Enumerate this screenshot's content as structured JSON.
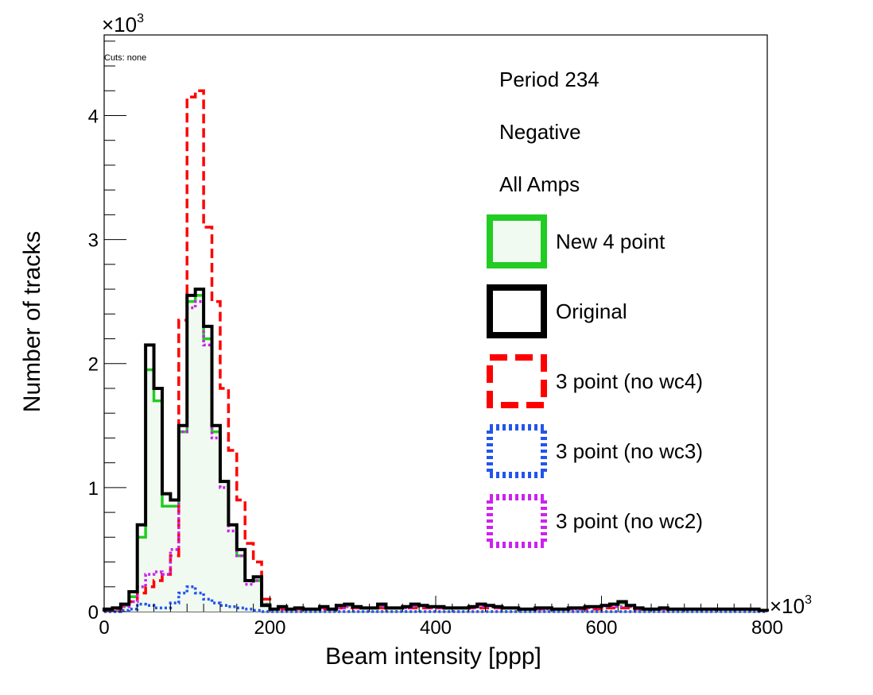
{
  "chart_data": {
    "type": "histogram-step",
    "xlabel": "Beam intensity [ppp]",
    "ylabel": "Number of tracks",
    "x_exponent_label": "×10",
    "y_exponent_label": "×10",
    "exponent": "3",
    "cuts_label": "Cuts: none",
    "info_lines": [
      "Period 234",
      "Negative",
      "All Amps"
    ],
    "xlim": [
      0,
      800
    ],
    "ylim": [
      0,
      4.65
    ],
    "x_major_ticks": [
      0,
      200,
      400,
      600,
      800
    ],
    "y_major_ticks": [
      0,
      1,
      2,
      3,
      4
    ],
    "bin_width": 10,
    "series": [
      {
        "name": "New 4 point",
        "color": "#22cc22",
        "fill": "#f0faf0",
        "style": "solid",
        "values": [
          0.02,
          0.03,
          0.05,
          0.12,
          0.6,
          1.95,
          1.7,
          0.85,
          0.85,
          1.45,
          2.5,
          2.55,
          2.2,
          1.45,
          1.05,
          0.7,
          0.45,
          0.25,
          0.25,
          0.06,
          0.02,
          0.03,
          0.02,
          0.03,
          0.02,
          0.02,
          0.03,
          0.02,
          0.04,
          0.05,
          0.04,
          0.03,
          0.03,
          0.05,
          0.03,
          0.03,
          0.04,
          0.05,
          0.05,
          0.04,
          0.04,
          0.03,
          0.03,
          0.03,
          0.04,
          0.06,
          0.05,
          0.04,
          0.03,
          0.03,
          0.02,
          0.02,
          0.03,
          0.03,
          0.02,
          0.02,
          0.03,
          0.03,
          0.04,
          0.04,
          0.05,
          0.06,
          0.07,
          0.05,
          0.03,
          0.02,
          0.02,
          0.03,
          0.02,
          0.02,
          0.02,
          0.02,
          0.02,
          0.02,
          0.02,
          0.02,
          0.02,
          0.02,
          0.02,
          0.01
        ]
      },
      {
        "name": "Original",
        "color": "#000000",
        "style": "solid",
        "values": [
          0.02,
          0.03,
          0.06,
          0.16,
          0.7,
          2.15,
          1.8,
          0.95,
          0.9,
          1.5,
          2.55,
          2.6,
          2.3,
          1.5,
          1.05,
          0.7,
          0.5,
          0.25,
          0.28,
          0.05,
          0.02,
          0.04,
          0.02,
          0.03,
          0.02,
          0.02,
          0.04,
          0.02,
          0.05,
          0.06,
          0.04,
          0.03,
          0.03,
          0.06,
          0.03,
          0.03,
          0.04,
          0.06,
          0.05,
          0.04,
          0.04,
          0.03,
          0.03,
          0.03,
          0.04,
          0.06,
          0.05,
          0.04,
          0.03,
          0.03,
          0.02,
          0.02,
          0.03,
          0.03,
          0.02,
          0.02,
          0.03,
          0.03,
          0.04,
          0.04,
          0.05,
          0.06,
          0.08,
          0.05,
          0.03,
          0.02,
          0.02,
          0.03,
          0.02,
          0.02,
          0.02,
          0.02,
          0.02,
          0.02,
          0.02,
          0.02,
          0.02,
          0.02,
          0.02,
          0.01
        ]
      },
      {
        "name": "3 point (no wc4)",
        "color": "#ff0000",
        "style": "dashed",
        "values": [
          0.01,
          0.02,
          0.04,
          0.08,
          0.15,
          0.2,
          0.25,
          0.3,
          0.45,
          2.35,
          4.15,
          4.2,
          3.1,
          2.5,
          1.8,
          1.3,
          0.9,
          0.55,
          0.4,
          0.1,
          0.02,
          0.02,
          0.02,
          0.02,
          0.02,
          0.02,
          0.02,
          0.02,
          0.03,
          0.03,
          0.03,
          0.03,
          0.03,
          0.03,
          0.03,
          0.03,
          0.03,
          0.03,
          0.03,
          0.03,
          0.03,
          0.03,
          0.03,
          0.03,
          0.03,
          0.03,
          0.03,
          0.03,
          0.03,
          0.03,
          0.02,
          0.02,
          0.02,
          0.02,
          0.02,
          0.02,
          0.02,
          0.02,
          0.02,
          0.02,
          0.03,
          0.03,
          0.03,
          0.03,
          0.02,
          0.02,
          0.02,
          0.02,
          0.02,
          0.02,
          0.02,
          0.02,
          0.02,
          0.02,
          0.02,
          0.02,
          0.02,
          0.02,
          0.02,
          0.01
        ]
      },
      {
        "name": "3 point (no wc3)",
        "color": "#2255ee",
        "style": "dotted",
        "values": [
          0,
          0,
          0.01,
          0.02,
          0.06,
          0.05,
          0.03,
          0.03,
          0.07,
          0.15,
          0.2,
          0.15,
          0.1,
          0.07,
          0.05,
          0.04,
          0.03,
          0.02,
          0.01,
          0,
          0,
          0,
          0,
          0,
          0,
          0,
          0,
          0,
          0,
          0,
          0,
          0,
          0,
          0,
          0,
          0,
          0,
          0,
          0,
          0,
          0,
          0,
          0,
          0,
          0,
          0,
          0,
          0,
          0,
          0,
          0,
          0,
          0,
          0,
          0,
          0,
          0,
          0,
          0,
          0,
          0,
          0,
          0,
          0,
          0,
          0,
          0,
          0,
          0,
          0,
          0,
          0,
          0,
          0,
          0,
          0,
          0,
          0,
          0,
          0
        ]
      },
      {
        "name": "3 point (no wc2)",
        "color": "#cc22ee",
        "style": "dotted",
        "values": [
          0.01,
          0.02,
          0.04,
          0.08,
          0.2,
          0.3,
          0.32,
          0.3,
          0.5,
          1.45,
          2.45,
          2.5,
          2.15,
          1.4,
          1.0,
          0.65,
          0.45,
          0.22,
          0.25,
          0.06,
          0.02,
          0.03,
          0.02,
          0.03,
          0.02,
          0.02,
          0.03,
          0.02,
          0.03,
          0.04,
          0.03,
          0.03,
          0.03,
          0.04,
          0.03,
          0.03,
          0.03,
          0.04,
          0.04,
          0.03,
          0.03,
          0.03,
          0.03,
          0.03,
          0.03,
          0.04,
          0.04,
          0.03,
          0.03,
          0.03,
          0.02,
          0.02,
          0.02,
          0.02,
          0.02,
          0.02,
          0.02,
          0.02,
          0.03,
          0.03,
          0.04,
          0.04,
          0.04,
          0.04,
          0.02,
          0.02,
          0.02,
          0.02,
          0.02,
          0.02,
          0.02,
          0.02,
          0.02,
          0.02,
          0.02,
          0.02,
          0.02,
          0.02,
          0.02,
          0.01
        ]
      }
    ]
  }
}
